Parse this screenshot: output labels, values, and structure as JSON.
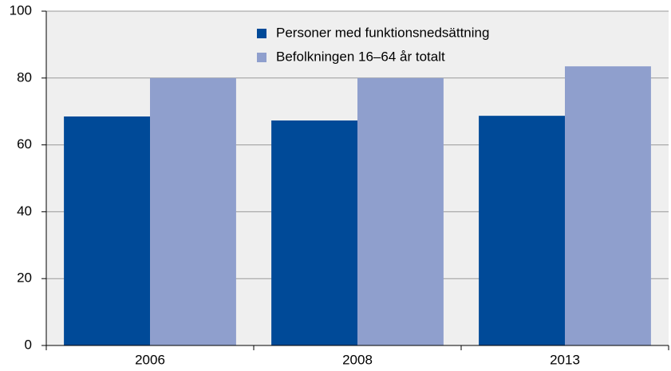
{
  "chart_data": {
    "type": "bar",
    "categories": [
      "2006",
      "2008",
      "2013"
    ],
    "series": [
      {
        "name": "Personer med funktionsnedsättning",
        "color": "#004a98",
        "values": [
          68.5,
          67.3,
          68.7
        ]
      },
      {
        "name": "Befolkningen 16–64 år totalt",
        "color": "#8f9fcd",
        "values": [
          80,
          80,
          83.5
        ]
      }
    ],
    "ylim": [
      0,
      100
    ],
    "yticks": [
      0,
      20,
      40,
      60,
      80,
      100
    ],
    "grid": true,
    "legend": "top"
  }
}
